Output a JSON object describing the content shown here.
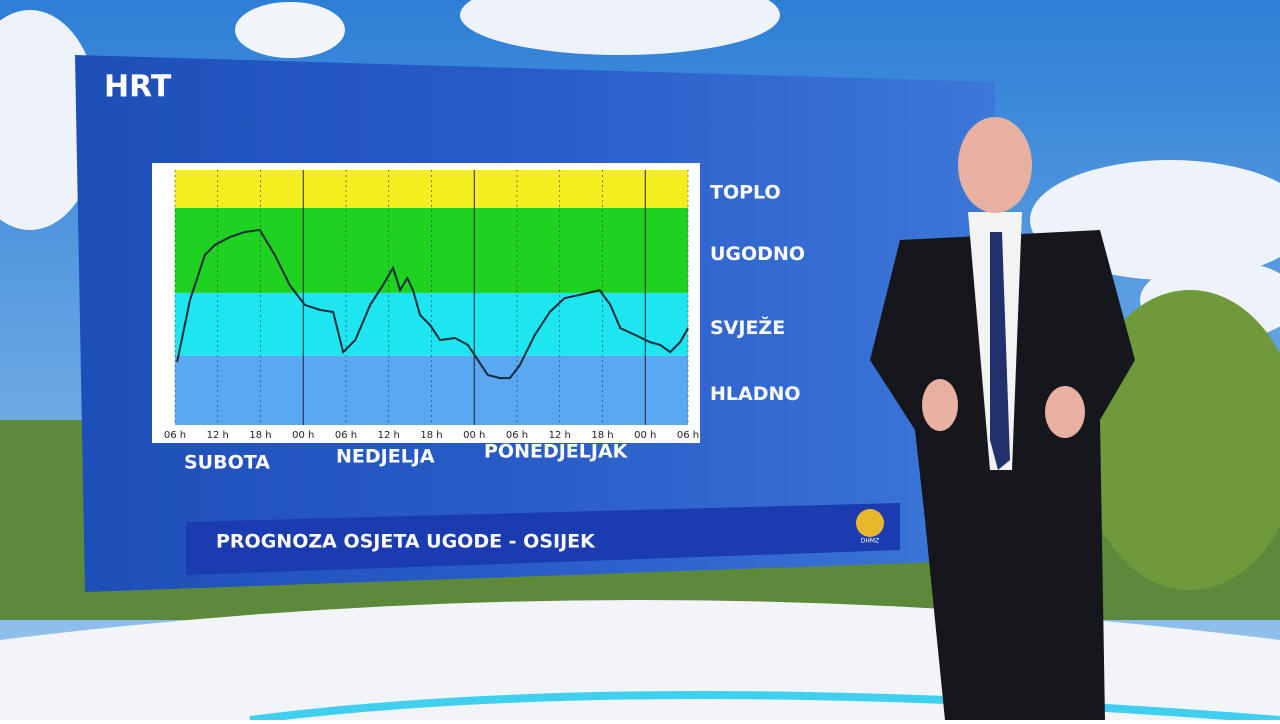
{
  "logo": "HRT",
  "chart_data": {
    "type": "line",
    "title": "PROGNOZA OSJETA UGODE - OSIJEK",
    "source_logo": "DHMZ",
    "day_labels": [
      "SUBOTA",
      "NEDJELJA",
      "PONEDJELJAK"
    ],
    "xlim": [
      0,
      72
    ],
    "xticks": [
      {
        "value": 0,
        "label": "06 h"
      },
      {
        "value": 6,
        "label": "12 h"
      },
      {
        "value": 12,
        "label": "18 h"
      },
      {
        "value": 18,
        "label": "00 h"
      },
      {
        "value": 24,
        "label": "06 h"
      },
      {
        "value": 30,
        "label": "12 h"
      },
      {
        "value": 36,
        "label": "18 h"
      },
      {
        "value": 42,
        "label": "00 h"
      },
      {
        "value": 48,
        "label": "06 h"
      },
      {
        "value": 54,
        "label": "12 h"
      },
      {
        "value": 60,
        "label": "18 h"
      },
      {
        "value": 66,
        "label": "00 h"
      },
      {
        "value": 72,
        "label": "06 h"
      }
    ],
    "ylim": [
      0,
      100
    ],
    "bands": [
      {
        "label": "TOPLO",
        "from": 85.1,
        "to": 100,
        "color": "#f4ee1f"
      },
      {
        "label": "UGODNO",
        "from": 51.8,
        "to": 85.1,
        "color": "#1fd21f"
      },
      {
        "label": "SVJEŽE",
        "from": 27.1,
        "to": 51.8,
        "color": "#1de6f0"
      },
      {
        "label": "HLADNO",
        "from": 0,
        "to": 27.1,
        "color": "#5aa8f2"
      }
    ],
    "series": [
      {
        "color": "#1a2a3a",
        "x": [
          0.3,
          2.1,
          4.2,
          5.6,
          7.7,
          9.8,
          11.9,
          14.0,
          16.1,
          18.2,
          20.4,
          22.2,
          23.6,
          25.3,
          27.4,
          29.2,
          30.6,
          31.6,
          32.6,
          33.4,
          34.4,
          35.8,
          37.2,
          39.3,
          41.1,
          42.5,
          43.9,
          45.6,
          47.0,
          48.4,
          50.5,
          52.6,
          54.7,
          56.8,
          59.6,
          61.1,
          62.5,
          64.6,
          66.7,
          68.1,
          69.5,
          70.9,
          72.0
        ],
        "values": [
          24.7,
          49.0,
          66.7,
          70.6,
          73.7,
          75.7,
          76.5,
          66.7,
          54.9,
          47.1,
          45.1,
          44.3,
          28.6,
          33.3,
          47.1,
          54.9,
          61.6,
          52.9,
          57.6,
          52.9,
          43.1,
          39.2,
          33.3,
          34.1,
          31.4,
          25.5,
          19.6,
          18.4,
          18.4,
          23.5,
          35.3,
          44.3,
          49.8,
          51.0,
          52.9,
          47.1,
          38.0,
          35.3,
          32.5,
          31.4,
          28.6,
          32.5,
          38.0
        ]
      }
    ]
  }
}
